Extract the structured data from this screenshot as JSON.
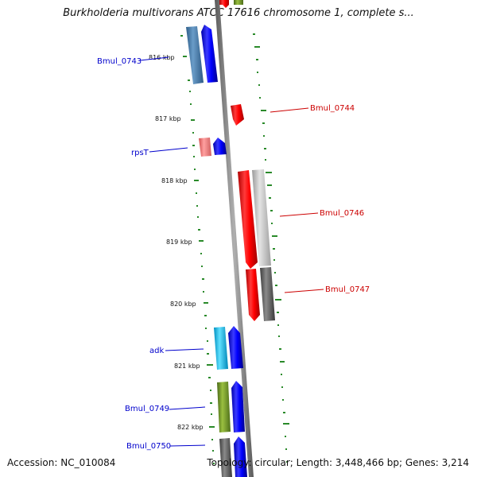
{
  "header": {
    "title": "Burkholderia multivorans ATCC 17616 chromosome 1, complete s..."
  },
  "footer": {
    "accession": "Accession: NC_010084",
    "topology": "Topology: circular; Length: 3,448,466 bp; Genes: 3,214"
  },
  "colors": {
    "forward_label": "#0000cc",
    "reverse_label": "#cc0000",
    "backbone": "#808080",
    "gc_skew_dots": "#2a8a2a"
  },
  "scale_ticks": [
    "816 kbp",
    "817 kbp",
    "818 kbp",
    "819 kbp",
    "820 kbp",
    "821 kbp",
    "822 kbp"
  ],
  "genes": [
    {
      "name": "Bmul_0743",
      "strand": "+",
      "cog_color": "#4682b4"
    },
    {
      "name": "Bmul_0744",
      "strand": "-",
      "cog_color": ""
    },
    {
      "name": "rpsT",
      "strand": "+",
      "cog_color": "#f08080"
    },
    {
      "name": "Bmul_0746",
      "strand": "-",
      "cog_color": "#c0c0c0"
    },
    {
      "name": "Bmul_0747",
      "strand": "-",
      "cog_color": "#606060"
    },
    {
      "name": "adk",
      "strand": "+",
      "cog_color": "#00bfff"
    },
    {
      "name": "Bmul_0749",
      "strand": "+",
      "cog_color": "#6b8e23"
    },
    {
      "name": "Bmul_0750",
      "strand": "+",
      "cog_color": "#606060"
    }
  ]
}
